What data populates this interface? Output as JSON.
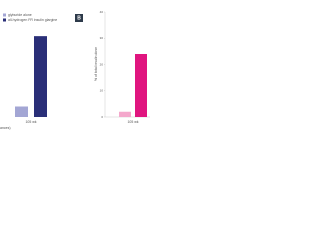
{
  "chart_data": [
    {
      "type": "bar",
      "categories": [
        "105 wk"
      ],
      "series": [
        {
          "name": "glyburide alone",
          "color": "#a3a6d4",
          "values": [
            10
          ]
        },
        {
          "name": "all-hydrogen FR insulin glargine",
          "color": "#2a2f78",
          "values": [
            77
          ]
        }
      ],
      "ylim": [
        0,
        100
      ],
      "note": "ances)"
    },
    {
      "type": "bar",
      "panel_label": "B",
      "y_label": "% of total insulin dose",
      "categories": [
        "105 wk"
      ],
      "series": [
        {
          "color": "#f4a8cc",
          "values": [
            2
          ]
        },
        {
          "color": "#e0157f",
          "values": [
            24
          ]
        }
      ],
      "ylim": [
        0,
        40
      ],
      "yticks": [
        0,
        10,
        20,
        30,
        40
      ]
    }
  ]
}
